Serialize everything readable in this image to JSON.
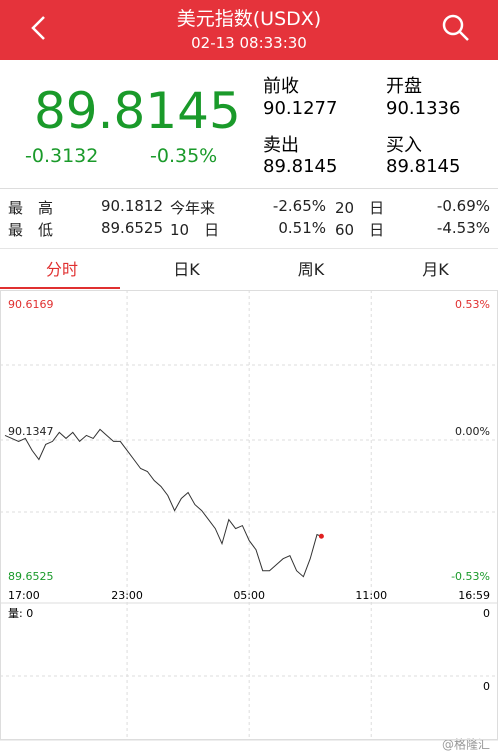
{
  "header": {
    "title": "美元指数(USDX)",
    "time": "02-13 08:33:30"
  },
  "quote": {
    "price": "89.8145",
    "change": "-0.3132",
    "change_pct": "-0.35%",
    "fields": [
      {
        "label": "前收",
        "value": "90.1277"
      },
      {
        "label": "开盘",
        "value": "90.1336"
      },
      {
        "label": "卖出",
        "value": "89.8145"
      },
      {
        "label": "买入",
        "value": "89.8145"
      }
    ]
  },
  "stats": [
    [
      "最　高",
      "90.1812",
      "今年来",
      "-2.65%",
      "20　日",
      "-0.69%"
    ],
    [
      "最　低",
      "89.6525",
      "10　日",
      "0.51%",
      "60　日",
      "-4.53%"
    ]
  ],
  "tabs": [
    "分时",
    "日K",
    "周K",
    "月K"
  ],
  "active_tab": 0,
  "chart_data": {
    "type": "line",
    "color": "#333333",
    "x": [
      "17:00",
      "17:20",
      "17:40",
      "18:00",
      "18:20",
      "18:40",
      "19:00",
      "19:20",
      "19:40",
      "20:00",
      "20:20",
      "20:40",
      "21:00",
      "21:20",
      "21:40",
      "22:00",
      "22:20",
      "22:40",
      "23:00",
      "23:20",
      "23:40",
      "00:00",
      "00:20",
      "00:40",
      "01:00",
      "01:20",
      "01:40",
      "02:00",
      "02:20",
      "02:40",
      "03:00",
      "03:20",
      "03:40",
      "04:00",
      "04:20",
      "04:40",
      "05:00",
      "05:20",
      "05:40",
      "06:00",
      "06:20",
      "06:40",
      "07:00",
      "07:20",
      "07:40",
      "08:00",
      "08:20",
      "08:33"
    ],
    "values": [
      90.15,
      90.14,
      90.13,
      90.14,
      90.1,
      90.07,
      90.12,
      90.13,
      90.16,
      90.14,
      90.16,
      90.13,
      90.15,
      90.14,
      90.17,
      90.15,
      90.13,
      90.13,
      90.1,
      90.07,
      90.04,
      90.03,
      90.0,
      89.98,
      89.95,
      89.9,
      89.94,
      89.96,
      89.92,
      89.9,
      89.87,
      89.84,
      89.79,
      89.87,
      89.84,
      89.85,
      89.8,
      89.77,
      89.7,
      89.7,
      89.72,
      89.74,
      89.75,
      89.7,
      89.68,
      89.74,
      89.82,
      89.8145
    ],
    "xlim": [
      "17:00",
      "16:59"
    ],
    "xticks": [
      "17:00",
      "23:00",
      "05:00",
      "11:00",
      "16:59"
    ],
    "ylim": [
      89.6525,
      90.6169
    ],
    "yticks": [
      90.6169,
      90.1347,
      89.6525
    ],
    "y2lim": [
      -0.53,
      0.53
    ],
    "y2ticks": [
      {
        "value": 0.53,
        "label": "0.53%"
      },
      {
        "value": 0,
        "label": "0.00%"
      },
      {
        "value": -0.53,
        "label": "-0.53%"
      }
    ],
    "grid": true,
    "end_marker_color": "#e02020"
  },
  "volume": {
    "label": "量: 0",
    "ticks": [
      "0",
      "0"
    ]
  },
  "watermark": "@格隆汇"
}
